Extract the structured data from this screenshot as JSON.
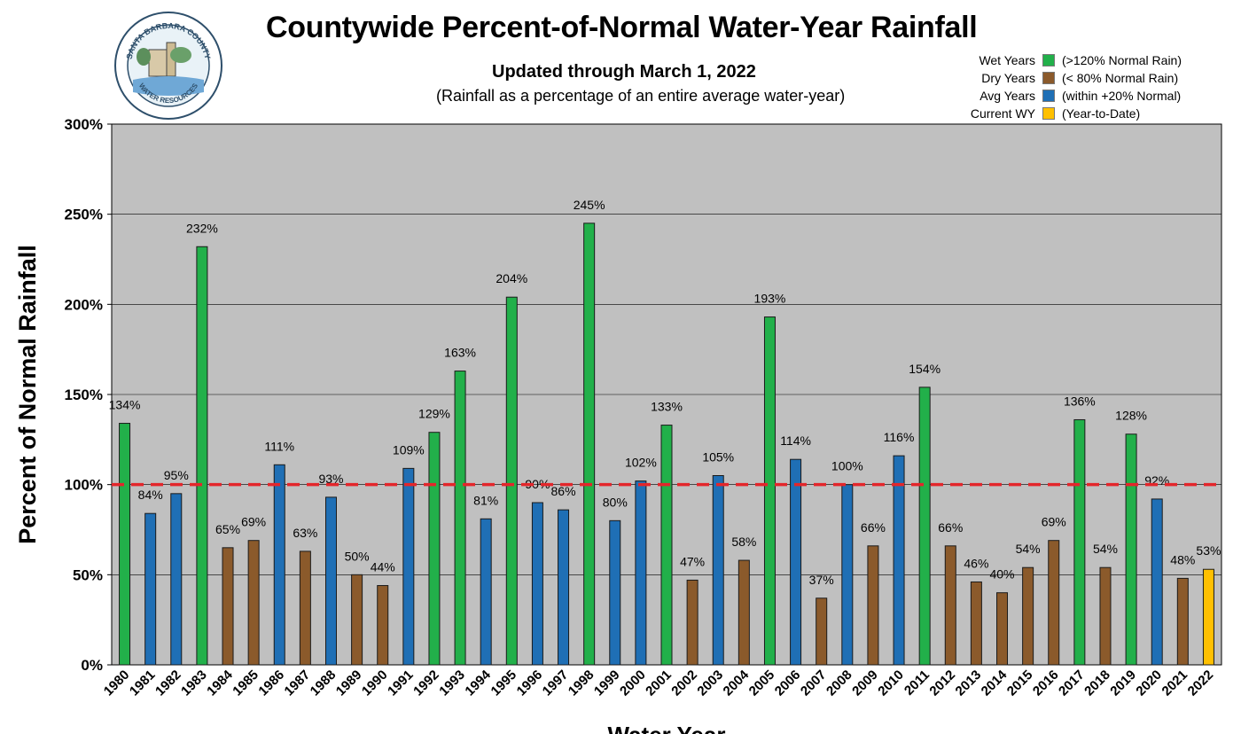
{
  "header": {
    "title": "Countywide Percent-of-Normal Water-Year Rainfall",
    "subtitle": "Updated through March 1, 2022",
    "note": "(Rainfall as a percentage of an entire average water-year)"
  },
  "seal": {
    "top_text": "SANTA BARBARA COUNTY",
    "bottom_text": "WATER RESOURCES"
  },
  "legend": [
    {
      "name": "Wet Years",
      "desc": "(>120% Normal Rain)",
      "color": "#22b04a"
    },
    {
      "name": "Dry Years",
      "desc": "(< 80% Normal Rain)",
      "color": "#8b5a2b"
    },
    {
      "name": "Avg Years",
      "desc": "(within +20% Normal)",
      "color": "#1f6fb5"
    },
    {
      "name": "Current WY",
      "desc": "(Year-to-Date)",
      "color": "#ffc000"
    }
  ],
  "chart_data": {
    "type": "bar",
    "ylabel": "Percent of Normal Rainfall",
    "xlabel": "Water Year",
    "ylim": [
      0,
      300
    ],
    "yticks": [
      "0%",
      "50%",
      "100%",
      "150%",
      "200%",
      "250%",
      "300%"
    ],
    "reference_line": 100,
    "grid": true,
    "plot_background": "#c0c0c0",
    "categories": [
      "1980",
      "1981",
      "1982",
      "1983",
      "1984",
      "1985",
      "1986",
      "1987",
      "1988",
      "1989",
      "1990",
      "1991",
      "1992",
      "1993",
      "1994",
      "1995",
      "1996",
      "1997",
      "1998",
      "1999",
      "2000",
      "2001",
      "2002",
      "2003",
      "2004",
      "2005",
      "2006",
      "2007",
      "2008",
      "2009",
      "2010",
      "2011",
      "2012",
      "2013",
      "2014",
      "2015",
      "2016",
      "2017",
      "2018",
      "2019",
      "2020",
      "2021",
      "2022"
    ],
    "values": [
      134,
      84,
      95,
      232,
      65,
      69,
      111,
      63,
      93,
      50,
      44,
      109,
      129,
      163,
      81,
      204,
      90,
      86,
      245,
      80,
      102,
      133,
      47,
      105,
      58,
      193,
      114,
      37,
      100,
      66,
      116,
      154,
      66,
      46,
      40,
      54,
      69,
      136,
      54,
      128,
      92,
      48,
      53
    ],
    "labels": [
      "134%",
      "84%",
      "95%",
      "232%",
      "65%",
      "69%",
      "111%",
      "63%",
      "93%",
      "50%",
      "44%",
      "109%",
      "129%",
      "163%",
      "81%",
      "204%",
      "90%",
      "86%",
      "245%",
      "80%",
      "102%",
      "133%",
      "47%",
      "105%",
      "58%",
      "193%",
      "114%",
      "37%",
      "100%",
      "66%",
      "116%",
      "154%",
      "66%",
      "46%",
      "40%",
      "54%",
      "69%",
      "136%",
      "54%",
      "128%",
      "92%",
      "48%",
      "53%"
    ],
    "categories_type": [
      "wet",
      "avg",
      "avg",
      "wet",
      "dry",
      "dry",
      "avg",
      "dry",
      "avg",
      "dry",
      "dry",
      "avg",
      "wet",
      "wet",
      "avg",
      "wet",
      "avg",
      "avg",
      "wet",
      "avg",
      "avg",
      "wet",
      "dry",
      "avg",
      "dry",
      "wet",
      "avg",
      "dry",
      "avg",
      "dry",
      "avg",
      "wet",
      "dry",
      "dry",
      "dry",
      "dry",
      "dry",
      "wet",
      "dry",
      "wet",
      "avg",
      "dry",
      "current"
    ]
  }
}
